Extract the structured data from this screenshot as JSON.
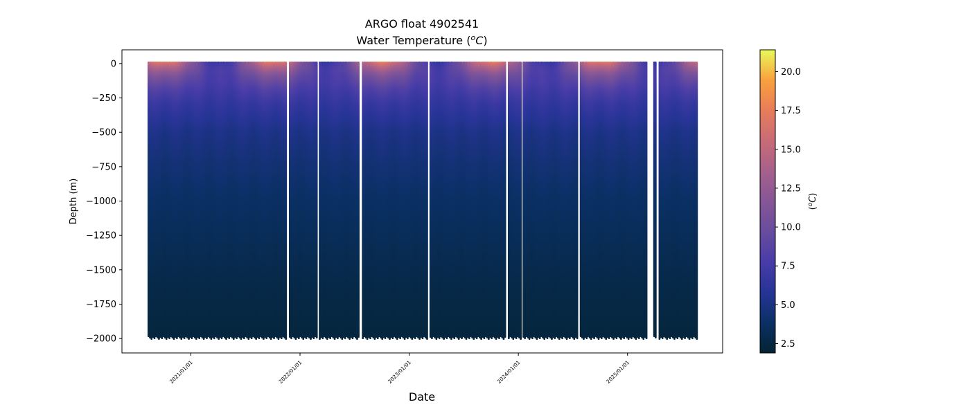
{
  "chart_data": {
    "type": "scatter",
    "title_line1": "ARGO float 4902541",
    "title_line2_prefix": "Water Temperature (",
    "title_line2_sup": "o",
    "title_line2_unit": "C",
    "title_line2_suffix": ")",
    "xlabel": "Date",
    "ylabel": "Depth (m)",
    "colorbar_label_prefix": "(",
    "colorbar_label_sup": "o",
    "colorbar_label_unit": "C",
    "colorbar_label_suffix": ")",
    "xlim": [
      "2020-05-15",
      "2025-11-15"
    ],
    "ylim": [
      -2105,
      100
    ],
    "xticks": [
      "2021/01/01",
      "2022/01/01",
      "2023/01/01",
      "2024/01/01",
      "2025/01/01"
    ],
    "yticks": [
      0,
      -250,
      -500,
      -750,
      -1000,
      -1250,
      -1500,
      -1750,
      -2000
    ],
    "ytick_labels": [
      "0",
      "−250",
      "−500",
      "−750",
      "−1000",
      "−1250",
      "−1500",
      "−1750",
      "−2000"
    ],
    "colorbar": {
      "colormap": "thermal",
      "range": [
        1.9,
        21.4
      ],
      "ticks": [
        2.5,
        5.0,
        7.5,
        10.0,
        12.5,
        15.0,
        17.5,
        20.0
      ],
      "tick_labels": [
        "2.5",
        "5.0",
        "7.5",
        "10.0",
        "12.5",
        "15.0",
        "17.5",
        "20.0"
      ]
    },
    "profile_segments": [
      [
        "2020-08-10",
        "2021-11-15"
      ],
      [
        "2021-11-26",
        "2022-02-24"
      ],
      [
        "2022-03-06",
        "2022-07-18"
      ],
      [
        "2022-07-28",
        "2023-03-01"
      ],
      [
        "2023-03-11",
        "2023-11-18"
      ],
      [
        "2023-11-28",
        "2024-01-07"
      ],
      [
        "2024-01-16",
        "2024-07-16"
      ],
      [
        "2024-07-26",
        "2025-03-08"
      ],
      [
        "2025-03-29",
        "2025-04-07"
      ],
      [
        "2025-04-16",
        "2025-08-19"
      ]
    ],
    "profile_interval_days": 5,
    "max_depth": -1975,
    "mean_profile": {
      "depth": [
        0,
        -50,
        -100,
        -200,
        -300,
        -500,
        -750,
        -1000,
        -1250,
        -1500,
        -1750,
        -2000
      ],
      "temperature": [
        12.0,
        10.8,
        9.5,
        7.8,
        6.6,
        5.2,
        4.4,
        3.8,
        3.3,
        2.9,
        2.6,
        2.3
      ]
    },
    "surface_seasonal": {
      "amplitude": 5.5,
      "peak_month_fraction": 0.75
    }
  },
  "colors": {
    "axes": "#000000",
    "background": "#ffffff"
  }
}
